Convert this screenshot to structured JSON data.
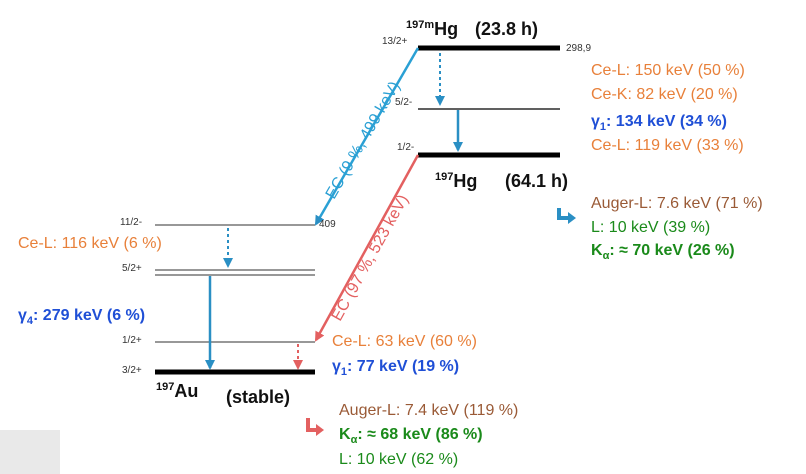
{
  "hg197m": {
    "mass_label": "197m",
    "element": "Hg",
    "half_life": "(23.8 h)",
    "spin_13_2": "13/2+",
    "energy_298": "298,9",
    "spin_5_2m": "5/2-",
    "spin_1_2m": "1/2-"
  },
  "hg197": {
    "mass_label": "197",
    "element": "Hg",
    "half_life": "(64.1 h)"
  },
  "au197": {
    "mass_label": "197",
    "element": "Au",
    "half_life": "(stable)",
    "spin_11_2": "11/2-",
    "energy_409": "409",
    "spin_5_2p": "5/2+",
    "spin_1_2p": "1/2+",
    "spin_3_2p": "3/2+"
  },
  "transitions": {
    "ec_m": "EC (9 %, 499 keV)",
    "ec_g": "EC (97 %, 523 keV)"
  },
  "hgm_emissions": {
    "ce_l_150": "Ce-L: 150 keV (50 %)",
    "ce_k_82": "Ce-K: 82 keV (20 %)",
    "gamma1_label": "γ",
    "gamma1_sub": "1",
    "gamma1_value": ": 134 keV (34 %)",
    "ce_l_119": "Ce-L: 119 keV (33 %)"
  },
  "hg_xrays": {
    "auger_l": "Auger-L: 7.6 keV (71 %)",
    "l_line": "L: 10 keV (39 %)",
    "ka_label": "K",
    "ka_sub": "α",
    "ka_value": ": ≈ 70 keV (26 %)"
  },
  "au_emissions": {
    "ce_l_116": "Ce-L: 116 keV (6 %)",
    "gamma4_label": "γ",
    "gamma4_sub": "4",
    "gamma4_value": ": 279 keV (6 %)",
    "ce_l_63": "Ce-L: 63 keV (60 %)",
    "gamma1_label": "γ",
    "gamma1_sub": "1",
    "gamma1_value": ": 77 keV (19 %)"
  },
  "au_xrays": {
    "auger_l": "Auger-L: 7.4 keV (119 %)",
    "ka_label": "K",
    "ka_sub": "α",
    "ka_value": ": ≈ 68 keV (86 %)",
    "l_line": "L: 10 keV (62 %)"
  },
  "colors": {
    "ec_metastable": "#2aa0d4",
    "ec_ground": "#e36060",
    "gamma_arrow": "#2a8fc4",
    "xray_arrow_blue": "#2a8fc4",
    "xray_arrow_red": "#e36060",
    "level_line": "#000000"
  }
}
